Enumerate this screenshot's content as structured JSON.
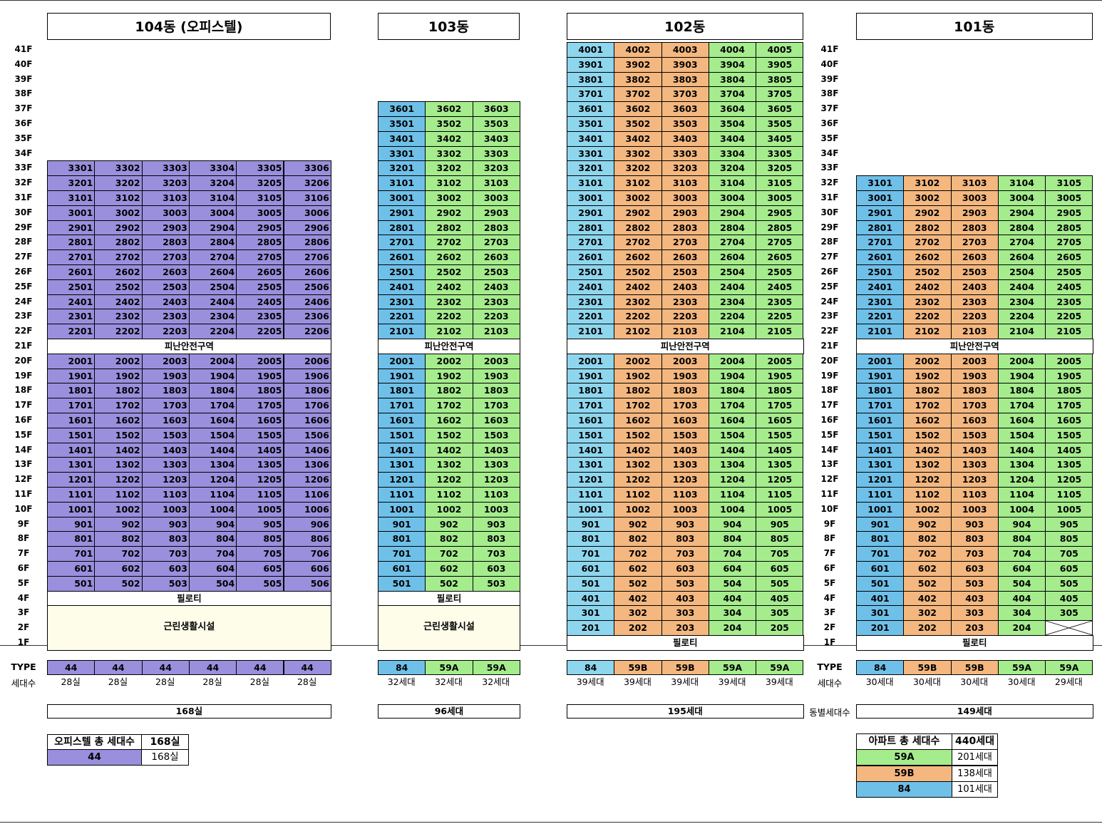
{
  "floors": [
    "41F",
    "40F",
    "39F",
    "38F",
    "37F",
    "36F",
    "35F",
    "34F",
    "33F",
    "32F",
    "31F",
    "30F",
    "29F",
    "28F",
    "27F",
    "26F",
    "25F",
    "24F",
    "23F",
    "22F",
    "21F",
    "20F",
    "19F",
    "18F",
    "17F",
    "16F",
    "15F",
    "14F",
    "13F",
    "12F",
    "11F",
    "10F",
    "9F",
    "8F",
    "7F",
    "6F",
    "5F",
    "4F",
    "3F",
    "2F",
    "1F"
  ],
  "colors": {
    "officetel": "#9a8fdd",
    "t84_103": "#6fc0e9",
    "t84_102": "#8ed6ee",
    "t84_101": "#6fc0e9",
    "t59A": "#a5ec8d",
    "t59B": "#f4b77f",
    "fac": "#fdfde9"
  },
  "buildings": [
    {
      "key": "b104",
      "title": "104동 (오피스텔)",
      "cols": 6,
      "colors": [
        "officetel",
        "officetel",
        "officetel",
        "officetel",
        "officetel",
        "officetel"
      ],
      "upperTop": 33,
      "upperBottom": 22,
      "lowerTop": 20,
      "lowerBottom": 5,
      "refuge": "피난안전구역",
      "piloti_floor4": "필로티",
      "facility": "근린생활시설",
      "types": [
        "44",
        "44",
        "44",
        "44",
        "44",
        "44"
      ],
      "counts": [
        "28실",
        "28실",
        "28실",
        "28실",
        "28실",
        "28실"
      ],
      "total": "168실"
    },
    {
      "key": "b103",
      "title": "103동",
      "cols": 3,
      "colors": [
        "t84_103",
        "t59A",
        "t59A"
      ],
      "upperTop": 36,
      "upperBottom": 21,
      "lowerTop": 20,
      "lowerBottom": 5,
      "refuge": "피난안전구역",
      "piloti_floor4": "필로티",
      "facility": "근린생활시설",
      "types": [
        "84",
        "59A",
        "59A"
      ],
      "counts": [
        "32세대",
        "32세대",
        "32세대"
      ],
      "total": "96세대"
    },
    {
      "key": "b102",
      "title": "102동",
      "cols": 5,
      "colors": [
        "t84_102",
        "t59B",
        "t59B",
        "t59A",
        "t59A"
      ],
      "upperTop": 40,
      "upperBottom": 21,
      "lowerTop": 20,
      "lowerBottom": 2,
      "refuge": "피난안전구역",
      "piloti_floor1": "필로티",
      "types": [
        "84",
        "59B",
        "59B",
        "59A",
        "59A"
      ],
      "counts": [
        "39세대",
        "39세대",
        "39세대",
        "39세대",
        "39세대"
      ],
      "total": "195세대"
    },
    {
      "key": "b101",
      "title": "101동",
      "cols": 5,
      "colors": [
        "t84_101",
        "t59B",
        "t59B",
        "t59A",
        "t59A"
      ],
      "upperTop": 31,
      "upperBottom": 21,
      "lowerTop": 20,
      "lowerBottom": 2,
      "refuge": "피난안전구역",
      "piloti_floor1": "필로티",
      "types": [
        "84",
        "59B",
        "59B",
        "59A",
        "59A"
      ],
      "counts": [
        "30세대",
        "30세대",
        "30세대",
        "30세대",
        "29세대"
      ],
      "total": "149세대"
    }
  ],
  "labels": {
    "type": "TYPE",
    "units": "세대수",
    "per_building": "동별세대수"
  },
  "officetel_summary": {
    "header": "오피스텔 총 세대수",
    "header_value": "168실",
    "type": "44",
    "type_value": "168실"
  },
  "apartment_summary": {
    "header": "아파트 총 세대수",
    "header_value": "440세대",
    "rows": [
      {
        "type": "59A",
        "value": "201세대",
        "color": "t59A"
      },
      {
        "type": "59B",
        "value": "138세대",
        "color": "t59B"
      },
      {
        "type": "84",
        "value": "101세대",
        "color": "t84_101"
      }
    ]
  }
}
